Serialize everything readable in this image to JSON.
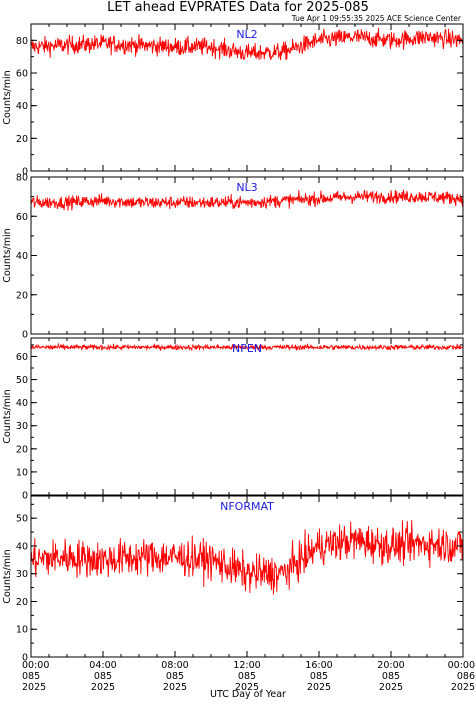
{
  "title": "LET ahead EVPRATES Data for 2025-085",
  "timestamp": "Tue Apr  1 09:55:35 2025 ACE Science Center",
  "colors": {
    "series": "#ff0000",
    "panel_label": "#1c1cdc",
    "axes": "#000000"
  },
  "chart_data": [
    {
      "type": "line",
      "series_name": "NL2",
      "ylabel": "Counts/min",
      "ylim": [
        0,
        90
      ],
      "yticks": [
        0,
        20,
        40,
        60,
        80
      ],
      "xlim": [
        0,
        24
      ],
      "approx_profile_hours": [
        0,
        2,
        4,
        6,
        8,
        10,
        12,
        14,
        16,
        18,
        20,
        22,
        24
      ],
      "approx_profile_values": [
        76,
        77,
        78,
        77,
        76,
        76,
        72,
        73,
        80,
        82,
        80,
        82,
        80
      ],
      "noise_amplitude": 5
    },
    {
      "type": "line",
      "series_name": "NL3",
      "ylabel": "Counts/min",
      "ylim": [
        0,
        80
      ],
      "yticks": [
        0,
        20,
        40,
        60,
        80
      ],
      "xlim": [
        0,
        24
      ],
      "approx_profile_hours": [
        0,
        2,
        4,
        6,
        8,
        10,
        12,
        14,
        16,
        18,
        20,
        22,
        24
      ],
      "approx_profile_values": [
        67,
        67,
        68,
        67,
        67,
        67,
        67,
        68,
        69,
        70,
        70,
        70,
        69
      ],
      "noise_amplitude": 3
    },
    {
      "type": "line",
      "series_name": "NPEN",
      "ylabel": "Counts/min",
      "ylim": [
        0,
        68
      ],
      "yticks": [
        0,
        10,
        20,
        30,
        40,
        50,
        60
      ],
      "xlim": [
        0,
        24
      ],
      "approx_profile_hours": [
        0,
        4,
        8,
        12,
        16,
        20,
        24
      ],
      "approx_profile_values": [
        64,
        64,
        64,
        64,
        64,
        64,
        64
      ],
      "noise_amplitude": 1
    },
    {
      "type": "line",
      "series_name": "NFORMAT",
      "ylabel": "Counts/min",
      "ylim": [
        0,
        58
      ],
      "yticks": [
        0,
        10,
        20,
        30,
        40,
        50
      ],
      "xlim": [
        0,
        24
      ],
      "approx_profile_hours": [
        0,
        2,
        4,
        6,
        8,
        10,
        12,
        14,
        16,
        18,
        20,
        22,
        24
      ],
      "approx_profile_values": [
        35,
        36,
        35,
        36,
        36,
        35,
        30,
        30,
        40,
        42,
        40,
        41,
        40
      ],
      "noise_amplitude": 6
    }
  ],
  "x_axis": {
    "label": "UTC Day of Year",
    "ticks": [
      {
        "hour": 0,
        "time": "00:00",
        "doy": "085",
        "year": "2025"
      },
      {
        "hour": 4,
        "time": "04:00",
        "doy": "085",
        "year": "2025"
      },
      {
        "hour": 8,
        "time": "08:00",
        "doy": "085",
        "year": "2025"
      },
      {
        "hour": 12,
        "time": "12:00",
        "doy": "085",
        "year": "2025"
      },
      {
        "hour": 16,
        "time": "16:00",
        "doy": "085",
        "year": "2025"
      },
      {
        "hour": 20,
        "time": "20:00",
        "doy": "085",
        "year": "2025"
      },
      {
        "hour": 24,
        "time": "00:00",
        "doy": "086",
        "year": "2025"
      }
    ]
  }
}
